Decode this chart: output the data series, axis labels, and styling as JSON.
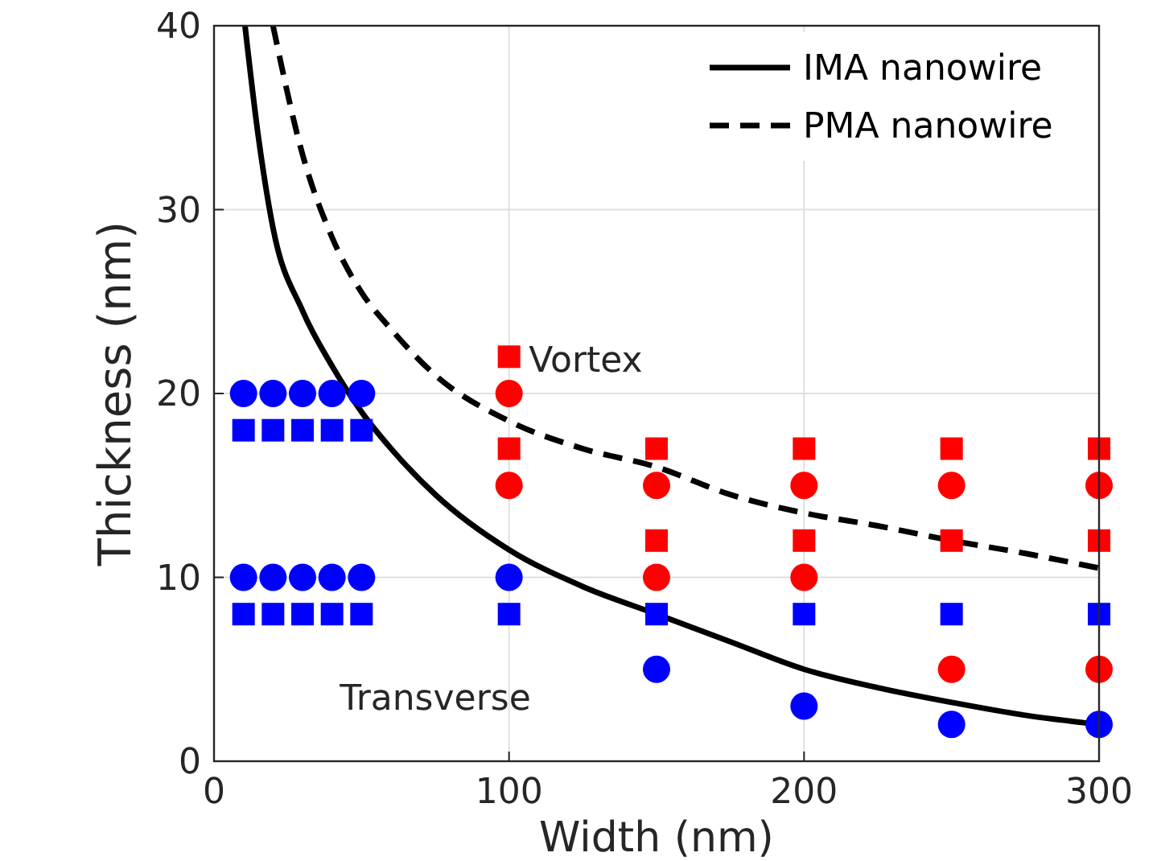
{
  "chart_data": {
    "type": "scatter",
    "xlabel": "Width (nm)",
    "ylabel": "Thickness (nm)",
    "xlim": [
      0,
      300
    ],
    "ylim": [
      0,
      40
    ],
    "xticks": [
      0,
      100,
      200,
      300
    ],
    "yticks": [
      0,
      10,
      20,
      30,
      40
    ],
    "grid": true,
    "legend": "top right",
    "series": [
      {
        "name": "IMA nanowire",
        "type": "line",
        "line_style": "solid",
        "color": "#000000",
        "x": [
          10.5,
          15,
          20,
          30,
          40,
          50,
          60,
          75,
          100,
          125,
          150,
          175,
          200,
          225,
          250,
          275,
          300
        ],
        "values": [
          40,
          34,
          29,
          24.5,
          21.5,
          19,
          17,
          14.5,
          11.5,
          9.5,
          8,
          6.5,
          5,
          4,
          3.2,
          2.5,
          2
        ]
      },
      {
        "name": "PMA nanowire",
        "type": "line",
        "line_style": "dashed",
        "color": "#000000",
        "x": [
          20,
          30,
          40,
          50,
          60,
          75,
          100,
          125,
          150,
          175,
          200,
          225,
          250,
          275,
          300
        ],
        "values": [
          40,
          33,
          28.5,
          25.5,
          23.5,
          21,
          18.5,
          17,
          16,
          14.5,
          13.5,
          12.8,
          12,
          11.3,
          10.5
        ]
      },
      {
        "marker": "circle",
        "color": "#0000ff",
        "x": [
          10,
          20,
          30,
          40,
          50,
          10,
          20,
          30,
          40,
          50,
          100,
          150,
          200,
          250,
          300
        ],
        "values": [
          20,
          20,
          20,
          20,
          20,
          10,
          10,
          10,
          10,
          10,
          10,
          5,
          3,
          2,
          2
        ]
      },
      {
        "marker": "square",
        "color": "#0000ff",
        "x": [
          10,
          20,
          30,
          40,
          50,
          10,
          20,
          30,
          40,
          50,
          100,
          150,
          200,
          250,
          300
        ],
        "values": [
          18,
          18,
          18,
          18,
          18,
          8,
          8,
          8,
          8,
          8,
          8,
          8,
          8,
          8,
          8
        ]
      },
      {
        "marker": "circle",
        "color": "#ff0000",
        "x": [
          100,
          100,
          150,
          150,
          200,
          200,
          250,
          250,
          300,
          300
        ],
        "values": [
          20,
          15,
          15,
          10,
          15,
          10,
          15,
          5,
          15,
          5
        ]
      },
      {
        "marker": "square",
        "color": "#ff0000",
        "x": [
          100,
          100,
          150,
          150,
          200,
          200,
          250,
          250,
          300,
          300
        ],
        "values": [
          22,
          17,
          17,
          12,
          17,
          12,
          17,
          12,
          17,
          12
        ]
      }
    ],
    "annotations": [
      "Vortex",
      "Transverse"
    ]
  }
}
